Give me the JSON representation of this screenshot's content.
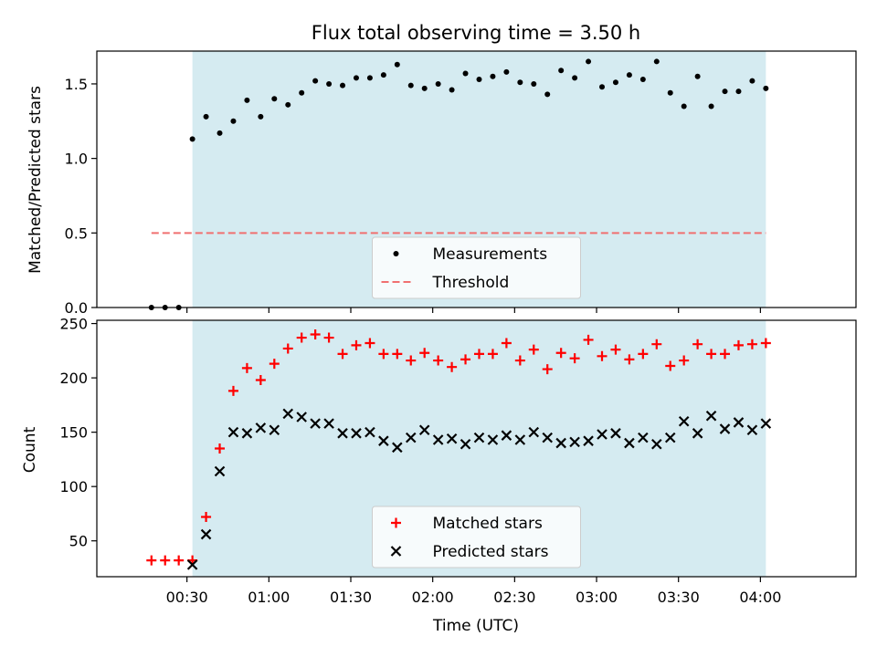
{
  "chart_data": [
    {
      "type": "scatter",
      "title": "Flux total observing time = 3.50 h",
      "xlabel": "",
      "ylabel": "Matched/Predicted stars",
      "ylim": [
        0,
        1.72
      ],
      "yticks": [
        0.0,
        0.5,
        1.0,
        1.5
      ],
      "ytick_labels": [
        "0.0",
        "0.5",
        "1.0",
        "1.5"
      ],
      "xlim_minutes": [
        -3,
        275
      ],
      "shaded_span": [
        "00:32",
        "04:02"
      ],
      "shade_color": "#d5ebf1",
      "legend_position": "lower center",
      "series": [
        {
          "name": "Measurements",
          "color": "#000000",
          "marker": "dot",
          "x": [
            "00:17",
            "00:22",
            "00:27",
            "00:32",
            "00:37",
            "00:42",
            "00:47",
            "00:52",
            "00:57",
            "01:02",
            "01:07",
            "01:12",
            "01:17",
            "01:22",
            "01:27",
            "01:32",
            "01:37",
            "01:42",
            "01:47",
            "01:52",
            "01:57",
            "02:02",
            "02:07",
            "02:12",
            "02:17",
            "02:22",
            "02:27",
            "02:32",
            "02:37",
            "02:42",
            "02:47",
            "02:52",
            "02:57",
            "03:02",
            "03:07",
            "03:12",
            "03:17",
            "03:22",
            "03:27",
            "03:32",
            "03:37",
            "03:42",
            "03:47",
            "03:52",
            "03:57",
            "04:02"
          ],
          "y": [
            0.0,
            0.0,
            0.0,
            1.13,
            1.28,
            1.17,
            1.25,
            1.39,
            1.28,
            1.4,
            1.36,
            1.44,
            1.52,
            1.5,
            1.49,
            1.54,
            1.54,
            1.56,
            1.63,
            1.49,
            1.47,
            1.5,
            1.46,
            1.57,
            1.53,
            1.55,
            1.58,
            1.51,
            1.5,
            1.43,
            1.59,
            1.54,
            1.65,
            1.48,
            1.51,
            1.56,
            1.53,
            1.65,
            1.44,
            1.35,
            1.55,
            1.35,
            1.45,
            1.45,
            1.52,
            1.47
          ]
        },
        {
          "name": "Threshold",
          "color": "#f07070",
          "style": "dashed",
          "x": [
            "00:17",
            "04:02"
          ],
          "y": [
            0.5,
            0.5
          ]
        }
      ]
    },
    {
      "type": "scatter",
      "title": "",
      "xlabel": "Time (UTC)",
      "ylabel": "Count",
      "ylim": [
        17,
        253
      ],
      "yticks": [
        50,
        100,
        150,
        200,
        250
      ],
      "ytick_labels": [
        "50",
        "100",
        "150",
        "200",
        "250"
      ],
      "xticks": [
        "00:30",
        "01:00",
        "01:30",
        "02:00",
        "02:30",
        "03:00",
        "03:30",
        "04:00"
      ],
      "xlim_minutes": [
        -3,
        275
      ],
      "shaded_span": [
        "00:32",
        "04:02"
      ],
      "shade_color": "#d5ebf1",
      "legend_position": "lower center",
      "series": [
        {
          "name": "Matched stars",
          "color": "#ff0000",
          "marker": "plus",
          "x": [
            "00:17",
            "00:22",
            "00:27",
            "00:32",
            "00:37",
            "00:42",
            "00:47",
            "00:52",
            "00:57",
            "01:02",
            "01:07",
            "01:12",
            "01:17",
            "01:22",
            "01:27",
            "01:32",
            "01:37",
            "01:42",
            "01:47",
            "01:52",
            "01:57",
            "02:02",
            "02:07",
            "02:12",
            "02:17",
            "02:22",
            "02:27",
            "02:32",
            "02:37",
            "02:42",
            "02:47",
            "02:52",
            "02:57",
            "03:02",
            "03:07",
            "03:12",
            "03:17",
            "03:22",
            "03:27",
            "03:32",
            "03:37",
            "03:42",
            "03:47",
            "03:52",
            "03:57",
            "04:02"
          ],
          "y": [
            32,
            32,
            32,
            32,
            72,
            135,
            188,
            209,
            198,
            213,
            227,
            237,
            240,
            237,
            222,
            230,
            232,
            222,
            222,
            216,
            223,
            216,
            210,
            217,
            222,
            222,
            232,
            216,
            226,
            208,
            223,
            218,
            235,
            220,
            226,
            217,
            222,
            231,
            211,
            216,
            231,
            222,
            222,
            230,
            231,
            232
          ]
        },
        {
          "name": "Predicted stars",
          "color": "#000000",
          "marker": "x",
          "x": [
            "00:32",
            "00:37",
            "00:42",
            "00:47",
            "00:52",
            "00:57",
            "01:02",
            "01:07",
            "01:12",
            "01:17",
            "01:22",
            "01:27",
            "01:32",
            "01:37",
            "01:42",
            "01:47",
            "01:52",
            "01:57",
            "02:02",
            "02:07",
            "02:12",
            "02:17",
            "02:22",
            "02:27",
            "02:32",
            "02:37",
            "02:42",
            "02:47",
            "02:52",
            "02:57",
            "03:02",
            "03:07",
            "03:12",
            "03:17",
            "03:22",
            "03:27",
            "03:32",
            "03:37",
            "03:42",
            "03:47",
            "03:52",
            "03:57",
            "04:02"
          ],
          "y": [
            28,
            56,
            114,
            150,
            149,
            154,
            152,
            167,
            164,
            158,
            158,
            149,
            149,
            150,
            142,
            136,
            145,
            152,
            143,
            144,
            139,
            145,
            143,
            147,
            143,
            150,
            145,
            140,
            141,
            142,
            148,
            149,
            140,
            145,
            139,
            145,
            160,
            149,
            165,
            153,
            159,
            152,
            158
          ]
        }
      ]
    }
  ]
}
